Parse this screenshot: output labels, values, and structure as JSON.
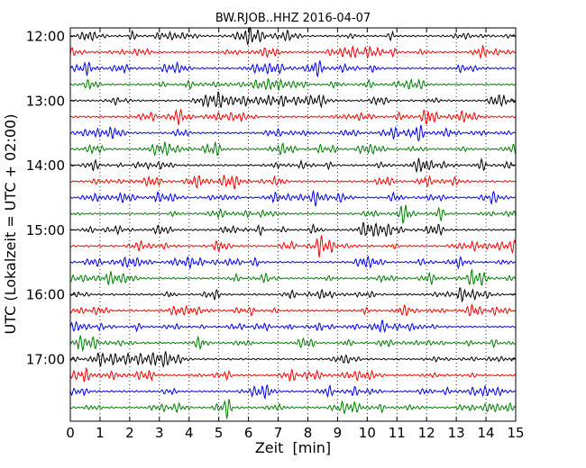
{
  "chart_data": {
    "type": "line",
    "title": "BW.RJOB..HHZ 2016-04-07",
    "xlabel": "Zeit  [min]",
    "ylabel": "UTC (Lokalzeit = UTC + 02:00)",
    "xlim": [
      0,
      15
    ],
    "x_ticks": [
      0,
      1,
      2,
      3,
      4,
      5,
      6,
      7,
      8,
      9,
      10,
      11,
      12,
      13,
      14,
      15
    ],
    "x_tick_labels": [
      "0",
      "1",
      "2",
      "3",
      "4",
      "5",
      "6",
      "7",
      "8",
      "9",
      "10",
      "11",
      "12",
      "13",
      "14",
      "15"
    ],
    "y_tick_labels": [
      "12:00",
      "13:00",
      "14:00",
      "15:00",
      "16:00",
      "17:00"
    ],
    "start_time": "12:00",
    "trace_interval_min": 15,
    "trace_count": 24,
    "trace_colors": [
      "#000000",
      "#ff0000",
      "#0000ff",
      "#007f00"
    ],
    "grid": {
      "x": true,
      "style": "dotted"
    },
    "legend": "none"
  }
}
